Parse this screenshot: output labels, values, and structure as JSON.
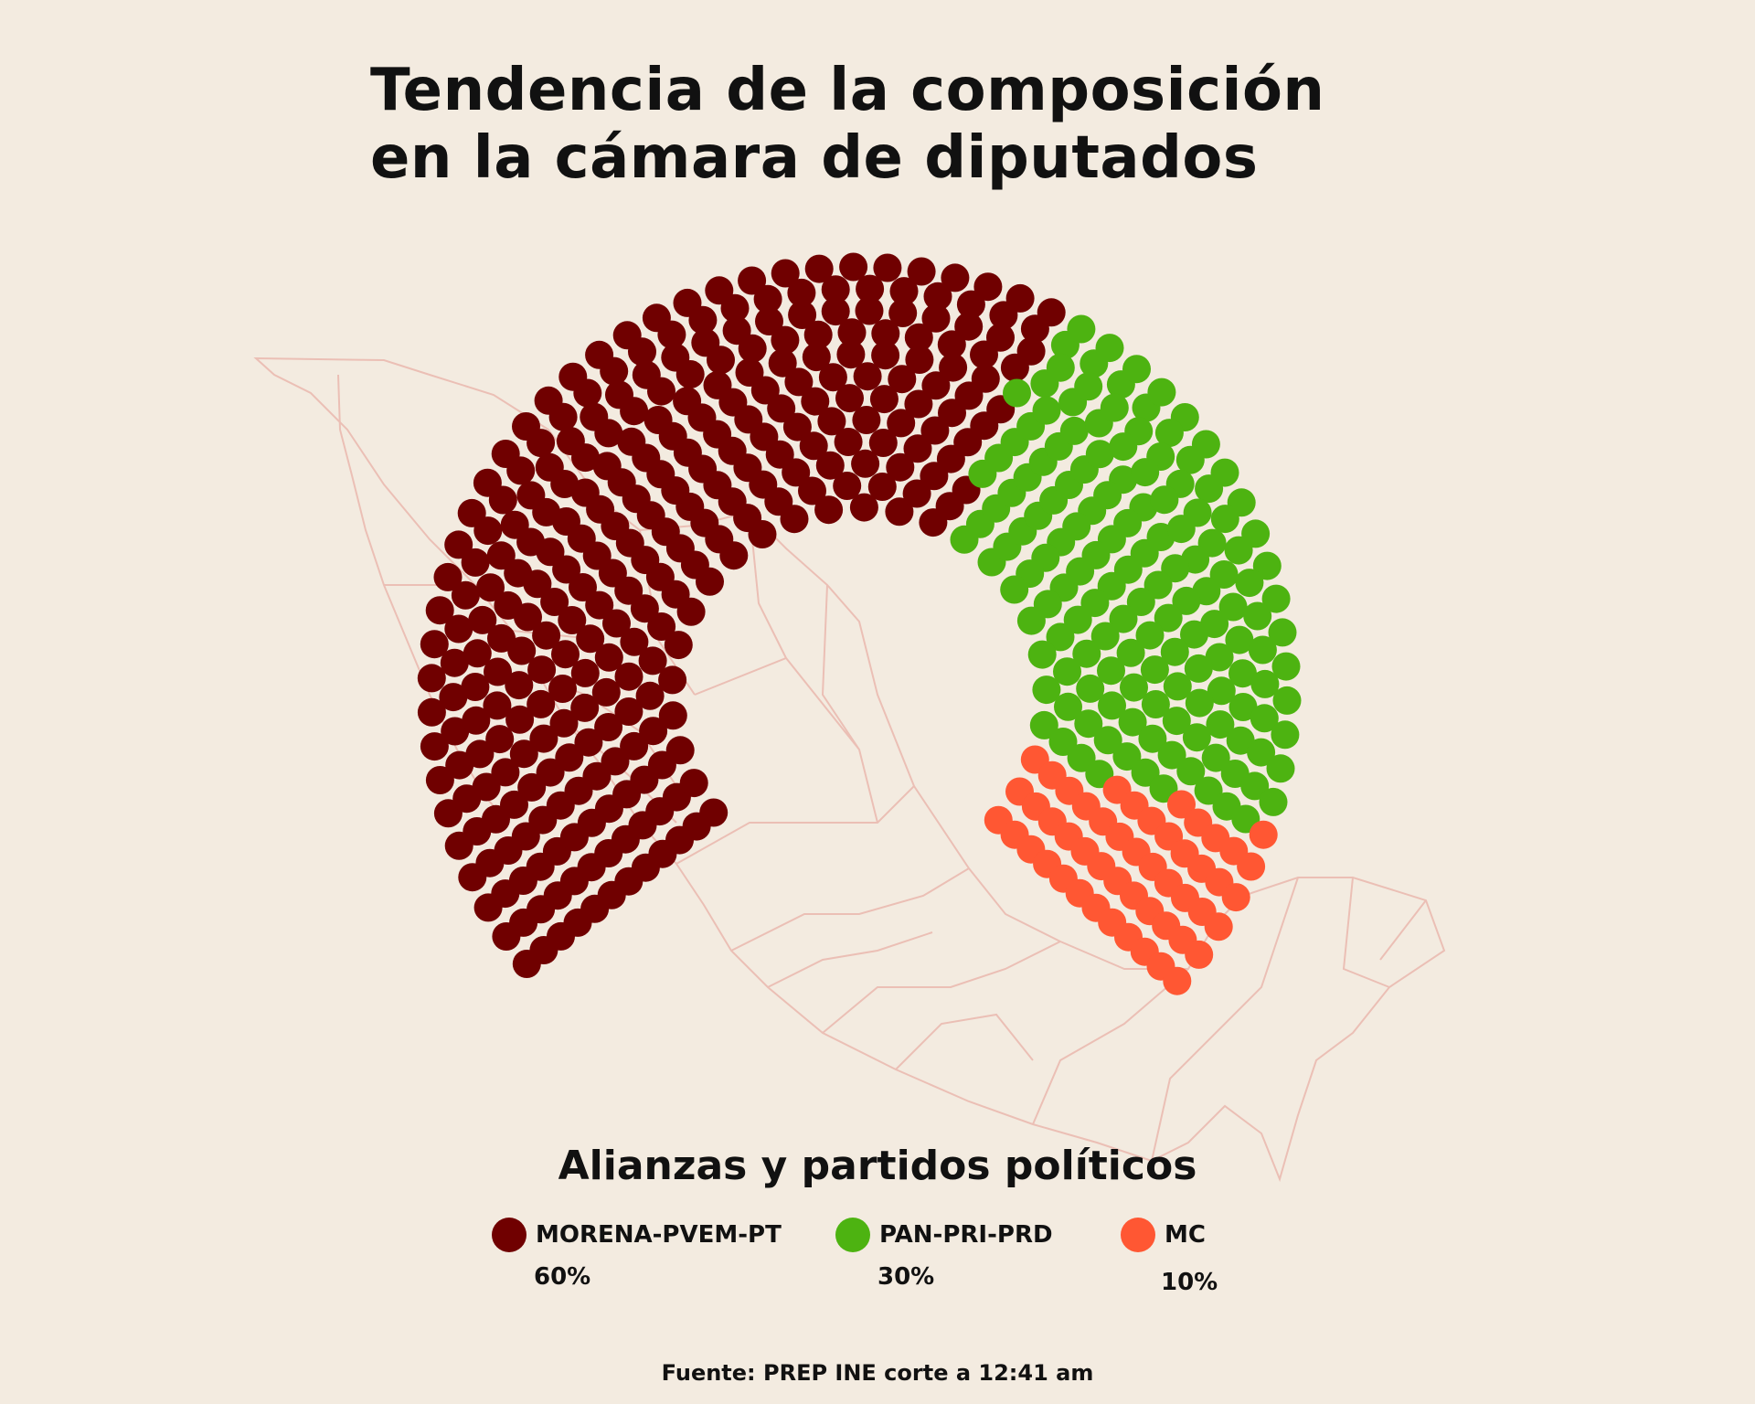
{
  "title": {
    "line1": "Tendencia de la composición",
    "line2": "en la cámara de diputados"
  },
  "legend": {
    "title": "Alianzas y partidos políticos",
    "items": [
      {
        "label": "MORENA-PVEM-PT",
        "percent": "60%",
        "color": "#700000"
      },
      {
        "label": "PAN-PRI-PRD",
        "percent": "30%",
        "color": "#4db311"
      },
      {
        "label": "MC",
        "percent": "10%",
        "color": "#ff5733"
      }
    ]
  },
  "source": "Fuente: PREP INE corte a 12:41 am",
  "chart_data": {
    "type": "parliament",
    "title": "Tendencia de la composición en la cámara de diputados",
    "total_seats": 500,
    "series": [
      {
        "name": "MORENA-PVEM-PT",
        "percent": 60,
        "seats": 300,
        "color": "#700000"
      },
      {
        "name": "PAN-PRI-PRD",
        "percent": 30,
        "seats": 150,
        "color": "#4db311"
      },
      {
        "name": "MC",
        "percent": 10,
        "seats": 50,
        "color": "#ff5733"
      }
    ],
    "background_map": "Mexico (state outlines)"
  }
}
